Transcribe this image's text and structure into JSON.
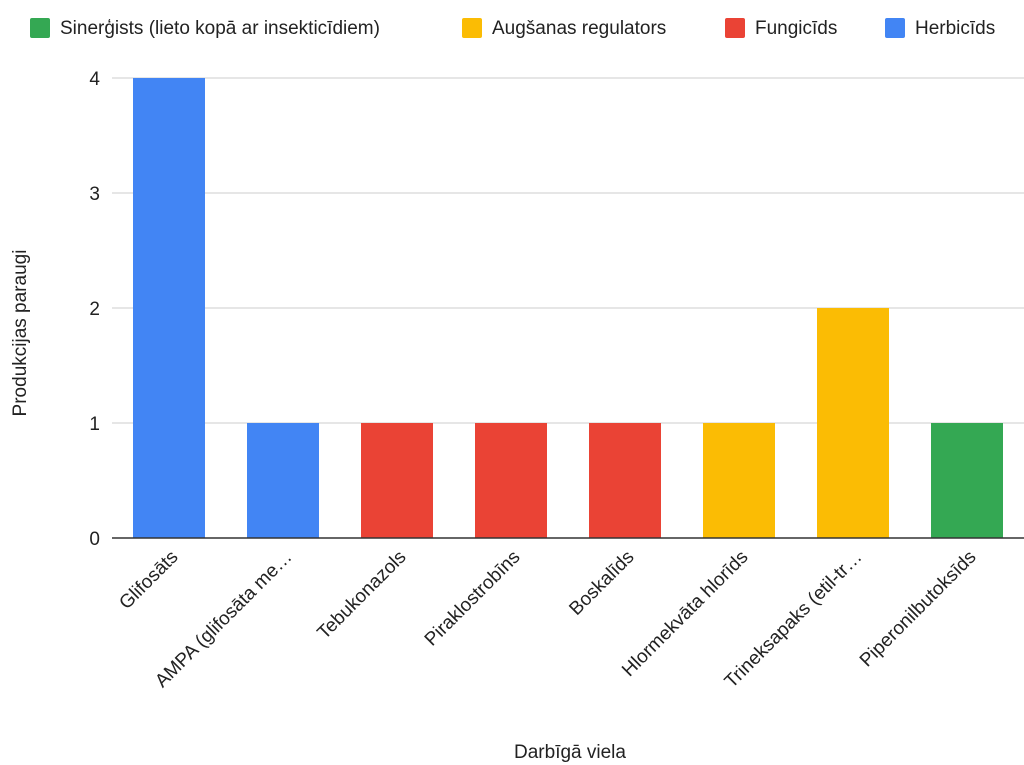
{
  "legend": [
    {
      "label": "Sinerģists (lieto kopā ar insekticīdiem)",
      "color": "#34a853"
    },
    {
      "label": "Augšanas regulators",
      "color": "#fbbc04"
    },
    {
      "label": "Fungicīds",
      "color": "#ea4335"
    },
    {
      "label": "Herbicīds",
      "color": "#4285f4"
    }
  ],
  "chart_data": {
    "type": "bar",
    "title": "",
    "xlabel": "Darbīgā viela",
    "ylabel": "Produkcijas paraugi",
    "ylim": [
      0,
      4
    ],
    "yticks": [
      "0",
      "1",
      "2",
      "3",
      "4"
    ],
    "grid": true,
    "legend_position": "top",
    "categories": [
      "Glifosāts",
      "AMPA (glifosāta me…",
      "Tebukonazols",
      "Piraklostrobīns",
      "Boskalīds",
      "Hlormekvāta hlorīds",
      "Trineksapaks (etil-tr…",
      "Piperonilbutoksīds"
    ],
    "values": [
      4,
      1,
      1,
      1,
      1,
      1,
      2,
      1
    ],
    "colors": [
      "#4285f4",
      "#4285f4",
      "#ea4335",
      "#ea4335",
      "#ea4335",
      "#fbbc04",
      "#fbbc04",
      "#34a853"
    ]
  }
}
